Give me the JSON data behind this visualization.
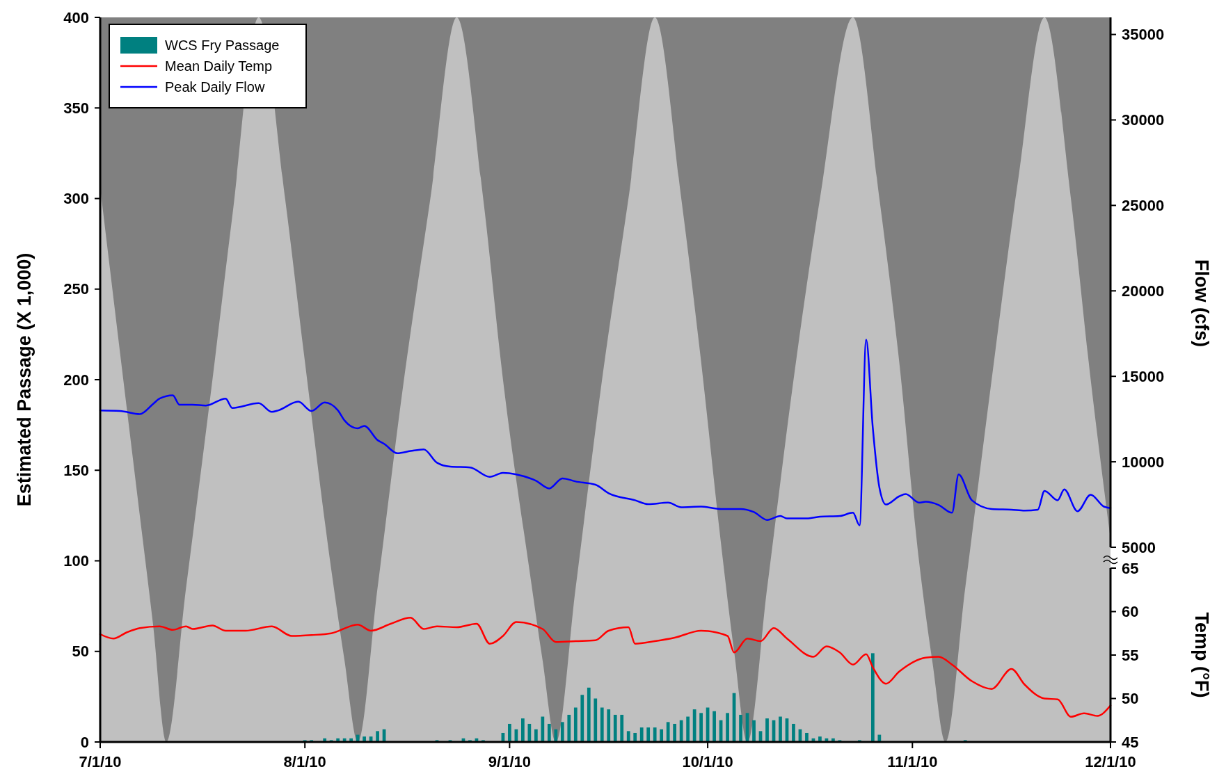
{
  "chart_data": {
    "type": "bar",
    "ylabel": "Estimated Passage (X 1,000)",
    "y2label": "Flow (cfs)",
    "y3label": "Temp (°F)",
    "xlim": [
      "2010-07-01",
      "2010-12-01"
    ],
    "xticks": [
      {
        "value": "2010-07-01",
        "label": "7/1/10"
      },
      {
        "value": "2010-08-01",
        "label": "8/1/10"
      },
      {
        "value": "2010-09-01",
        "label": "9/1/10"
      },
      {
        "value": "2010-10-01",
        "label": "10/1/10"
      },
      {
        "value": "2010-11-01",
        "label": "11/1/10"
      },
      {
        "value": "2010-12-01",
        "label": "12/1/10"
      }
    ],
    "ylim": [
      0,
      400
    ],
    "yticks": [
      0,
      50,
      100,
      150,
      200,
      250,
      300,
      350,
      400
    ],
    "y2lim": [
      5000,
      36000
    ],
    "y2ticks": [
      5000,
      10000,
      15000,
      20000,
      25000,
      30000,
      35000
    ],
    "y3lim": [
      45,
      65
    ],
    "y3ticks": [
      45,
      50,
      55,
      60,
      65
    ],
    "legend": "top left",
    "grid": false,
    "series": [
      {
        "type": "area",
        "color": "#c0c0c0",
        "x": [
          "2010-07-01",
          "2010-07-04",
          "2010-07-07",
          "2010-07-09",
          "2010-07-11",
          "2010-07-14",
          "2010-07-18",
          "2010-07-21",
          "2010-07-25",
          "2010-07-29",
          "2010-08-01",
          "2010-08-05",
          "2010-08-07",
          "2010-08-09",
          "2010-08-12",
          "2010-08-16",
          "2010-08-20",
          "2010-08-24",
          "2010-08-28",
          "2010-08-31",
          "2010-09-04",
          "2010-09-06",
          "2010-09-08",
          "2010-09-11",
          "2010-09-15",
          "2010-09-19",
          "2010-09-23",
          "2010-09-27",
          "2010-09-30",
          "2010-10-03",
          "2010-10-05",
          "2010-10-07",
          "2010-10-10",
          "2010-10-14",
          "2010-10-18",
          "2010-10-23",
          "2010-10-27",
          "2010-10-30",
          "2010-11-02",
          "2010-11-04",
          "2010-11-06",
          "2010-11-09",
          "2010-11-13",
          "2010-11-17",
          "2010-11-21",
          "2010-11-25",
          "2010-11-28",
          "2010-12-01"
        ],
        "values": [
          306,
          215,
          125,
          65,
          0,
          85,
          200,
          290,
          400,
          300,
          210,
          95,
          45,
          0,
          85,
          200,
          300,
          400,
          300,
          200,
          95,
          45,
          0,
          85,
          200,
          300,
          400,
          300,
          210,
          110,
          50,
          0,
          85,
          200,
          300,
          400,
          300,
          210,
          100,
          45,
          0,
          85,
          200,
          310,
          400,
          300,
          200,
          112
        ]
      },
      {
        "name": "WCS Fry Passage",
        "color": "#008080",
        "x": [
          "2010-08-01",
          "2010-08-02",
          "2010-08-04",
          "2010-08-05",
          "2010-08-06",
          "2010-08-07",
          "2010-08-08",
          "2010-08-09",
          "2010-08-10",
          "2010-08-11",
          "2010-08-12",
          "2010-08-13",
          "2010-08-21",
          "2010-08-23",
          "2010-08-25",
          "2010-08-26",
          "2010-08-27",
          "2010-08-28",
          "2010-08-31",
          "2010-09-01",
          "2010-09-02",
          "2010-09-03",
          "2010-09-04",
          "2010-09-05",
          "2010-09-06",
          "2010-09-07",
          "2010-09-08",
          "2010-09-09",
          "2010-09-10",
          "2010-09-11",
          "2010-09-12",
          "2010-09-13",
          "2010-09-14",
          "2010-09-15",
          "2010-09-16",
          "2010-09-17",
          "2010-09-18",
          "2010-09-19",
          "2010-09-20",
          "2010-09-21",
          "2010-09-22",
          "2010-09-23",
          "2010-09-24",
          "2010-09-25",
          "2010-09-26",
          "2010-09-27",
          "2010-09-28",
          "2010-09-29",
          "2010-09-30",
          "2010-10-01",
          "2010-10-02",
          "2010-10-03",
          "2010-10-04",
          "2010-10-05",
          "2010-10-06",
          "2010-10-07",
          "2010-10-08",
          "2010-10-09",
          "2010-10-10",
          "2010-10-11",
          "2010-10-12",
          "2010-10-13",
          "2010-10-14",
          "2010-10-15",
          "2010-10-16",
          "2010-10-17",
          "2010-10-18",
          "2010-10-19",
          "2010-10-20",
          "2010-10-21",
          "2010-10-24",
          "2010-10-26",
          "2010-10-27",
          "2010-11-09"
        ],
        "values": [
          1,
          1,
          2,
          1,
          2,
          2,
          2,
          4,
          3,
          3,
          6,
          7,
          1,
          1,
          2,
          1,
          2,
          1,
          5,
          10,
          7,
          13,
          10,
          7,
          14,
          10,
          7,
          11,
          15,
          19,
          26,
          30,
          24,
          19,
          18,
          15,
          15,
          6,
          5,
          8,
          8,
          8,
          7,
          11,
          10,
          12,
          14,
          18,
          16,
          19,
          17,
          12,
          16,
          27,
          15,
          16,
          12,
          6,
          13,
          12,
          14,
          13,
          10,
          7,
          5,
          2,
          3,
          2,
          2,
          1,
          1,
          49,
          4,
          1
        ]
      },
      {
        "type": "line",
        "name": "Mean Daily Temp",
        "color": "#ff0000",
        "axis": "y3",
        "x": [
          "2010-07-01",
          "2010-07-03",
          "2010-07-05",
          "2010-07-07",
          "2010-07-10",
          "2010-07-12",
          "2010-07-14",
          "2010-07-15",
          "2010-07-18",
          "2010-07-20",
          "2010-07-23",
          "2010-07-27",
          "2010-07-30",
          "2010-08-02",
          "2010-08-05",
          "2010-08-09",
          "2010-08-11",
          "2010-08-14",
          "2010-08-17",
          "2010-08-19",
          "2010-08-21",
          "2010-08-24",
          "2010-08-27",
          "2010-08-29",
          "2010-08-31",
          "2010-09-02",
          "2010-09-06",
          "2010-09-08",
          "2010-09-11",
          "2010-09-14",
          "2010-09-16",
          "2010-09-19",
          "2010-09-20",
          "2010-09-23",
          "2010-09-26",
          "2010-09-30",
          "2010-10-04",
          "2010-10-05",
          "2010-10-07",
          "2010-10-09",
          "2010-10-11",
          "2010-10-13",
          "2010-10-17",
          "2010-10-19",
          "2010-10-21",
          "2010-10-23",
          "2010-10-25",
          "2010-10-26",
          "2010-10-28",
          "2010-10-30",
          "2010-11-03",
          "2010-11-05",
          "2010-11-07",
          "2010-11-10",
          "2010-11-13",
          "2010-11-16",
          "2010-11-18",
          "2010-11-21",
          "2010-11-23",
          "2010-11-25",
          "2010-11-27",
          "2010-11-29",
          "2010-12-01"
        ],
        "values": [
          57.4,
          56.9,
          57.6,
          58.1,
          58.3,
          57.9,
          58.3,
          58.0,
          58.4,
          57.8,
          57.8,
          58.3,
          57.2,
          57.3,
          57.5,
          58.5,
          57.8,
          58.6,
          59.3,
          58.0,
          58.3,
          58.2,
          58.6,
          56.3,
          57.2,
          58.8,
          58.0,
          56.5,
          56.6,
          56.7,
          57.8,
          58.2,
          56.3,
          56.6,
          57.0,
          57.8,
          57.2,
          55.3,
          56.9,
          56.6,
          58.1,
          56.9,
          54.8,
          56.0,
          55.3,
          53.9,
          55.1,
          53.6,
          51.7,
          53.1,
          54.7,
          54.8,
          53.9,
          52.0,
          51.1,
          53.4,
          51.6,
          50.0,
          49.9,
          47.9,
          48.3,
          48.0,
          49.2
        ]
      },
      {
        "type": "line",
        "name": "Peak Daily Flow",
        "color": "#0000ff",
        "axis": "y2",
        "x": [
          "2010-07-01",
          "2010-07-04",
          "2010-07-07",
          "2010-07-09",
          "2010-07-10",
          "2010-07-12",
          "2010-07-13",
          "2010-07-15",
          "2010-07-17",
          "2010-07-20",
          "2010-07-21",
          "2010-07-25",
          "2010-07-27",
          "2010-07-28",
          "2010-07-31",
          "2010-08-02",
          "2010-08-04",
          "2010-08-06",
          "2010-08-07",
          "2010-08-09",
          "2010-08-10",
          "2010-08-12",
          "2010-08-13",
          "2010-08-15",
          "2010-08-17",
          "2010-08-19",
          "2010-08-21",
          "2010-08-23",
          "2010-08-26",
          "2010-08-29",
          "2010-08-31",
          "2010-09-02",
          "2010-09-05",
          "2010-09-07",
          "2010-09-09",
          "2010-09-11",
          "2010-09-14",
          "2010-09-16",
          "2010-09-20",
          "2010-09-22",
          "2010-09-25",
          "2010-09-27",
          "2010-09-30",
          "2010-10-03",
          "2010-10-06",
          "2010-10-08",
          "2010-10-10",
          "2010-10-12",
          "2010-10-13",
          "2010-10-16",
          "2010-10-18",
          "2010-10-21",
          "2010-10-23",
          "2010-10-24",
          "2010-10-25",
          "2010-10-26",
          "2010-10-27",
          "2010-10-28",
          "2010-10-30",
          "2010-10-31",
          "2010-11-02",
          "2010-11-03",
          "2010-11-05",
          "2010-11-07",
          "2010-11-08",
          "2010-11-10",
          "2010-11-13",
          "2010-11-16",
          "2010-11-18",
          "2010-11-20",
          "2010-11-21",
          "2010-11-23",
          "2010-11-24",
          "2010-11-26",
          "2010-11-28",
          "2010-11-30",
          "2010-12-01"
        ],
        "values": [
          13000,
          12970,
          12790,
          13380,
          13700,
          13890,
          13340,
          13340,
          13290,
          13700,
          13150,
          13430,
          12920,
          13010,
          13520,
          12970,
          13470,
          13010,
          12420,
          11960,
          12100,
          11270,
          11050,
          10500,
          10630,
          10730,
          9950,
          9720,
          9670,
          9120,
          9350,
          9260,
          8890,
          8440,
          9030,
          8850,
          8660,
          8160,
          7750,
          7520,
          7610,
          7340,
          7380,
          7240,
          7240,
          7060,
          6600,
          6830,
          6690,
          6690,
          6790,
          6830,
          7020,
          6280,
          17140,
          12000,
          8500,
          7500,
          7980,
          8110,
          7610,
          7660,
          7470,
          7020,
          9260,
          7750,
          7240,
          7200,
          7150,
          7200,
          8300,
          7750,
          8390,
          7110,
          8070,
          7380,
          7290
        ]
      }
    ]
  }
}
